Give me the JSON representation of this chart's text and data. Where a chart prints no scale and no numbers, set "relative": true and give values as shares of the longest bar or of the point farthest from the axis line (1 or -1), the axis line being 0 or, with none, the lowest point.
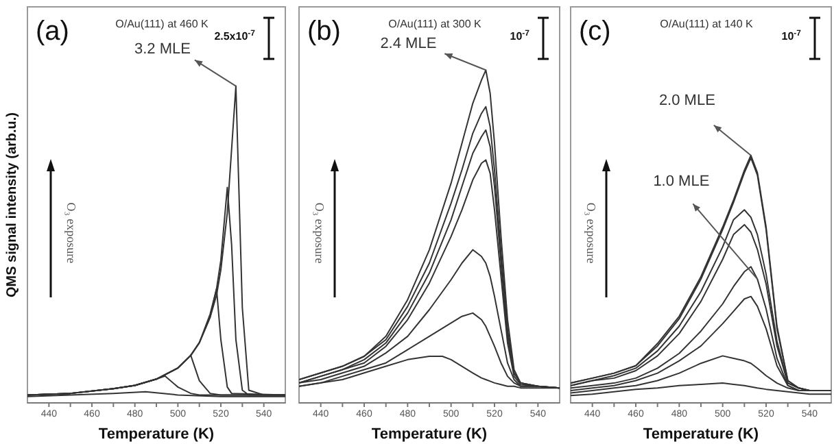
{
  "chart_data": [
    {
      "type": "line",
      "title": "(a)",
      "subtitle": "O/Au(111) at 460 K",
      "xlabel": "Temperature (K)",
      "ylabel": "QMS signal intensity (arb.u.)",
      "relative": true,
      "xlim": [
        430,
        550
      ],
      "xticks": [
        440,
        {
          "value": 450,
          "label": null
        },
        460,
        {
          "value": 470,
          "label": null
        },
        480,
        {
          "value": 490,
          "label": null
        },
        500,
        {
          "value": 510,
          "label": null
        },
        520,
        {
          "value": 530,
          "label": null
        },
        540
      ],
      "annotations": [
        "2.5x10$^{-7}$",
        "O₃ exposure",
        {
          "text": "3.2 MLE",
          "x": 527,
          "y": 1.0
        }
      ],
      "series": [
        {
          "color": "#333333",
          "x": [
            430,
            450,
            470,
            485,
            500,
            520,
            550
          ],
          "values": [
            0.02,
            0.025,
            0.03,
            0.035,
            0.025,
            0.02,
            0.02
          ]
        },
        {
          "color": "#333333",
          "x": [
            430,
            450,
            470,
            480,
            490,
            494,
            500,
            506,
            510,
            520,
            550
          ],
          "values": [
            0.025,
            0.03,
            0.045,
            0.055,
            0.075,
            0.085,
            0.05,
            0.03,
            0.025,
            0.025,
            0.025
          ]
        },
        {
          "color": "#333333",
          "x": [
            430,
            450,
            470,
            480,
            490,
            500,
            506,
            510,
            515,
            520,
            550
          ],
          "values": [
            0.025,
            0.03,
            0.045,
            0.055,
            0.075,
            0.11,
            0.15,
            0.07,
            0.03,
            0.025,
            0.025
          ]
        },
        {
          "color": "#333333",
          "x": [
            430,
            450,
            470,
            480,
            490,
            500,
            506,
            510,
            515,
            518,
            520,
            523,
            525,
            550
          ],
          "values": [
            0.025,
            0.03,
            0.045,
            0.055,
            0.075,
            0.11,
            0.15,
            0.19,
            0.28,
            0.36,
            0.2,
            0.05,
            0.03,
            0.025
          ]
        },
        {
          "color": "#333333",
          "x": [
            430,
            450,
            470,
            480,
            490,
            500,
            506,
            510,
            515,
            518,
            520,
            523,
            525,
            527,
            530,
            533,
            550
          ],
          "values": [
            0.025,
            0.03,
            0.045,
            0.055,
            0.075,
            0.11,
            0.15,
            0.19,
            0.27,
            0.36,
            0.45,
            0.68,
            0.5,
            0.2,
            0.04,
            0.025,
            0.025
          ]
        },
        {
          "color": "#333333",
          "x": [
            430,
            450,
            470,
            480,
            490,
            500,
            506,
            510,
            515,
            518,
            520,
            523,
            525,
            527,
            530,
            533,
            540,
            550
          ],
          "values": [
            0.025,
            0.03,
            0.045,
            0.055,
            0.075,
            0.11,
            0.15,
            0.19,
            0.27,
            0.34,
            0.42,
            0.6,
            0.8,
            1.0,
            0.3,
            0.04,
            0.025,
            0.025
          ]
        }
      ]
    },
    {
      "type": "line",
      "title": "(b)",
      "subtitle": "O/Au(111) at 300 K",
      "xlabel": "Temperature (K)",
      "relative": true,
      "xlim": [
        430,
        550
      ],
      "xticks": [
        440,
        {
          "value": 450,
          "label": null
        },
        460,
        {
          "value": 470,
          "label": null
        },
        480,
        {
          "value": 490,
          "label": null
        },
        500,
        {
          "value": 510,
          "label": null
        },
        520,
        {
          "value": 530,
          "label": null
        },
        540
      ],
      "annotations": [
        "10$^{-7}$",
        "O₃ exposure",
        {
          "text": "2.4 MLE",
          "x": 516,
          "y": 1.0
        }
      ],
      "series": [
        {
          "color": "#333333",
          "x": [
            430,
            440,
            450,
            460,
            470,
            480,
            490,
            496,
            500,
            505,
            510,
            514,
            516,
            518,
            520,
            523,
            526,
            529,
            532,
            540,
            550
          ],
          "values": [
            0.05,
            0.06,
            0.07,
            0.09,
            0.11,
            0.13,
            0.14,
            0.14,
            0.13,
            0.11,
            0.09,
            0.075,
            0.07,
            0.065,
            0.06,
            0.055,
            0.05,
            0.05,
            0.045,
            0.045,
            0.045
          ]
        },
        {
          "color": "#333333",
          "x": [
            430,
            440,
            450,
            460,
            470,
            480,
            490,
            500,
            505,
            510,
            514,
            516,
            518,
            520,
            523,
            526,
            529,
            532,
            540,
            550
          ],
          "values": [
            0.05,
            0.06,
            0.08,
            0.1,
            0.12,
            0.16,
            0.2,
            0.24,
            0.26,
            0.27,
            0.25,
            0.23,
            0.2,
            0.17,
            0.12,
            0.08,
            0.06,
            0.05,
            0.05,
            0.045
          ]
        },
        {
          "color": "#333333",
          "x": [
            430,
            440,
            450,
            460,
            470,
            480,
            490,
            500,
            505,
            510,
            514,
            516,
            518,
            520,
            523,
            526,
            529,
            532,
            540,
            550
          ],
          "values": [
            0.06,
            0.07,
            0.09,
            0.11,
            0.15,
            0.2,
            0.28,
            0.37,
            0.42,
            0.46,
            0.44,
            0.42,
            0.38,
            0.32,
            0.22,
            0.12,
            0.07,
            0.05,
            0.05,
            0.045
          ]
        },
        {
          "color": "#333333",
          "x": [
            430,
            440,
            450,
            460,
            470,
            480,
            490,
            500,
            505,
            510,
            514,
            516,
            518,
            520,
            523,
            526,
            529,
            532,
            540,
            550
          ],
          "values": [
            0.06,
            0.08,
            0.1,
            0.12,
            0.17,
            0.25,
            0.36,
            0.5,
            0.58,
            0.67,
            0.72,
            0.73,
            0.69,
            0.58,
            0.38,
            0.18,
            0.08,
            0.055,
            0.05,
            0.045
          ]
        },
        {
          "color": "#333333",
          "x": [
            430,
            440,
            450,
            460,
            470,
            480,
            490,
            500,
            505,
            510,
            514,
            516,
            518,
            520,
            523,
            526,
            529,
            532,
            540,
            550
          ],
          "values": [
            0.06,
            0.08,
            0.1,
            0.13,
            0.18,
            0.27,
            0.39,
            0.55,
            0.65,
            0.75,
            0.8,
            0.82,
            0.77,
            0.65,
            0.42,
            0.2,
            0.09,
            0.06,
            0.05,
            0.045
          ]
        },
        {
          "color": "#333333",
          "x": [
            430,
            440,
            450,
            460,
            470,
            480,
            490,
            500,
            505,
            510,
            514,
            516,
            518,
            520,
            523,
            526,
            529,
            532,
            540,
            550
          ],
          "values": [
            0.07,
            0.09,
            0.11,
            0.14,
            0.19,
            0.29,
            0.42,
            0.6,
            0.7,
            0.81,
            0.87,
            0.89,
            0.83,
            0.7,
            0.45,
            0.22,
            0.09,
            0.06,
            0.05,
            0.045
          ]
        },
        {
          "color": "#333333",
          "x": [
            430,
            440,
            450,
            460,
            470,
            480,
            490,
            500,
            505,
            510,
            514,
            516,
            518,
            520,
            523,
            526,
            529,
            532,
            540,
            550
          ],
          "values": [
            0.07,
            0.09,
            0.11,
            0.14,
            0.2,
            0.31,
            0.46,
            0.66,
            0.78,
            0.9,
            0.97,
            1.0,
            0.93,
            0.78,
            0.5,
            0.25,
            0.1,
            0.06,
            0.05,
            0.045
          ]
        }
      ]
    },
    {
      "type": "line",
      "title": "(c)",
      "subtitle": "O/Au(111) at 140 K",
      "xlabel": "Temperature (K)",
      "relative": true,
      "xlim": [
        430,
        550
      ],
      "xticks": [
        440,
        {
          "value": 450,
          "label": null
        },
        460,
        {
          "value": 470,
          "label": null
        },
        480,
        {
          "value": 490,
          "label": null
        },
        500,
        {
          "value": 510,
          "label": null
        },
        520,
        {
          "value": 530,
          "label": null
        },
        540
      ],
      "annotations": [
        "10$^{-7}$",
        "O₃ exposure",
        {
          "text": "2.0 MLE",
          "x": 513,
          "y": 1.0
        },
        {
          "text": "1.0 MLE",
          "x": 516,
          "y": 0.5
        }
      ],
      "series": [
        {
          "color": "#333333",
          "x": [
            430,
            440,
            450,
            460,
            470,
            480,
            490,
            500,
            505,
            510,
            513,
            516,
            520,
            525,
            530,
            535,
            540,
            550
          ],
          "values": [
            0.03,
            0.035,
            0.045,
            0.055,
            0.06,
            0.07,
            0.075,
            0.08,
            0.075,
            0.07,
            0.065,
            0.06,
            0.055,
            0.05,
            0.045,
            0.04,
            0.035,
            0.035
          ]
        },
        {
          "color": "#333333",
          "x": [
            430,
            440,
            450,
            460,
            470,
            480,
            490,
            500,
            505,
            510,
            513,
            516,
            520,
            525,
            530,
            535,
            540,
            550
          ],
          "values": [
            0.04,
            0.05,
            0.06,
            0.07,
            0.09,
            0.12,
            0.16,
            0.19,
            0.18,
            0.17,
            0.16,
            0.14,
            0.11,
            0.08,
            0.06,
            0.05,
            0.05,
            0.05
          ]
        },
        {
          "color": "#333333",
          "x": [
            430,
            440,
            450,
            460,
            470,
            480,
            490,
            500,
            505,
            510,
            513,
            516,
            520,
            525,
            530,
            535,
            540,
            550
          ],
          "values": [
            0.05,
            0.06,
            0.07,
            0.09,
            0.12,
            0.17,
            0.23,
            0.32,
            0.37,
            0.42,
            0.43,
            0.39,
            0.3,
            0.15,
            0.07,
            0.05,
            0.05,
            0.05
          ]
        },
        {
          "color": "#333333",
          "x": [
            430,
            440,
            450,
            460,
            470,
            480,
            490,
            500,
            505,
            510,
            513,
            516,
            520,
            525,
            530,
            535,
            540,
            550
          ],
          "values": [
            0.06,
            0.07,
            0.08,
            0.1,
            0.14,
            0.2,
            0.29,
            0.4,
            0.47,
            0.53,
            0.55,
            0.5,
            0.38,
            0.18,
            0.07,
            0.05,
            0.05,
            0.05
          ]
        },
        {
          "color": "#333333",
          "x": [
            430,
            440,
            450,
            460,
            470,
            480,
            490,
            500,
            505,
            510,
            513,
            516,
            520,
            525,
            530,
            535,
            540,
            550
          ],
          "values": [
            0.07,
            0.09,
            0.1,
            0.13,
            0.19,
            0.28,
            0.41,
            0.58,
            0.68,
            0.72,
            0.69,
            0.62,
            0.48,
            0.23,
            0.08,
            0.06,
            0.05,
            0.05
          ]
        },
        {
          "color": "#333333",
          "x": [
            430,
            440,
            450,
            460,
            470,
            480,
            490,
            500,
            505,
            510,
            513,
            516,
            520,
            525,
            530,
            535,
            540,
            550
          ],
          "values": [
            0.07,
            0.09,
            0.11,
            0.14,
            0.21,
            0.31,
            0.45,
            0.63,
            0.74,
            0.78,
            0.75,
            0.68,
            0.52,
            0.25,
            0.08,
            0.06,
            0.05,
            0.05
          ]
        },
        {
          "color": "#333333",
          "x": [
            430,
            440,
            450,
            460,
            470,
            480,
            490,
            500,
            505,
            510,
            513,
            516,
            520,
            525,
            530,
            535,
            540,
            550
          ],
          "values": [
            0.08,
            0.1,
            0.12,
            0.15,
            0.23,
            0.34,
            0.5,
            0.7,
            0.81,
            0.93,
            0.99,
            0.92,
            0.7,
            0.3,
            0.09,
            0.06,
            0.05,
            0.05
          ]
        },
        {
          "color": "#333333",
          "x": [
            430,
            440,
            450,
            460,
            470,
            480,
            490,
            500,
            505,
            510,
            513,
            516,
            520,
            525,
            530,
            535,
            540,
            550
          ],
          "values": [
            0.08,
            0.1,
            0.12,
            0.15,
            0.24,
            0.35,
            0.51,
            0.71,
            0.82,
            0.94,
            1.0,
            0.93,
            0.71,
            0.31,
            0.09,
            0.06,
            0.05,
            0.05
          ]
        }
      ]
    }
  ]
}
